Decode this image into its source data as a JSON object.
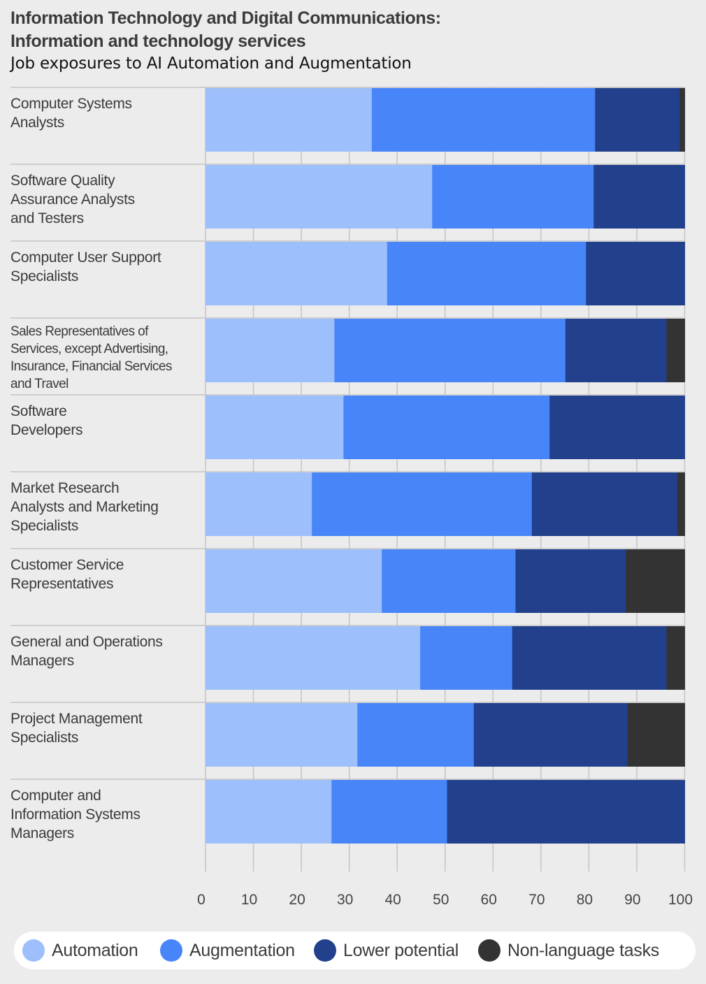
{
  "chart_data": {
    "type": "bar",
    "orientation": "horizontal",
    "stacked": true,
    "title": "Information Technology and Digital Communications:\nInformation and technology services",
    "title_lines": [
      "Information Technology and Digital Communications:",
      "Information and technology services"
    ],
    "subtitle": "Job exposures to AI Automation and Augmentation",
    "xlabel": "",
    "ylabel": "",
    "xlim": [
      0,
      100
    ],
    "xticks": [
      0,
      10,
      20,
      30,
      40,
      50,
      60,
      70,
      80,
      90,
      100
    ],
    "grid": true,
    "legend_position": "bottom",
    "categories": [
      "Computer Systems Analysts",
      "Software Quality Assurance Analysts and Testers",
      "Computer User Support Specialists",
      "Sales Representatives of Services, except Advertising, Insurance, Financial Services and Travel",
      "Software Developers",
      "Market Research Analysts and Marketing Specialists",
      "Customer Service Representatives",
      "General and Operations Managers",
      "Project Management Specialists",
      "Computer and Information Systems Managers"
    ],
    "category_lines": [
      [
        "Computer Systems",
        "Analysts"
      ],
      [
        "Software Quality",
        "Assurance Analysts",
        "and Testers"
      ],
      [
        "Computer User Support",
        "Specialists"
      ],
      [
        "Sales Representatives of",
        "Services, except Advertising,",
        "Insurance, Financial Services",
        "and Travel"
      ],
      [
        "Software",
        "Developers"
      ],
      [
        "Market Research",
        "Analysts and Marketing",
        "Specialists"
      ],
      [
        "Customer Service",
        "Representatives"
      ],
      [
        "General and Operations",
        "Managers"
      ],
      [
        "Project Management",
        "Specialists"
      ],
      [
        "Computer and",
        "Information Systems",
        "Managers"
      ]
    ],
    "series": [
      {
        "name": "Automation",
        "color": "#9dbffc",
        "values": [
          34.7,
          47.3,
          37.9,
          26.9,
          28.8,
          22.2,
          36.8,
          44.8,
          31.7,
          26.3
        ]
      },
      {
        "name": "Augmentation",
        "color": "#4885f9",
        "values": [
          46.6,
          33.7,
          41.5,
          48.2,
          43.0,
          45.9,
          27.9,
          19.2,
          24.3,
          24.1
        ]
      },
      {
        "name": "Lower potential",
        "color": "#22408c",
        "values": [
          17.7,
          19.0,
          20.6,
          21.1,
          28.2,
          30.4,
          23.0,
          32.2,
          32.1,
          49.6
        ]
      },
      {
        "name": "Non-language tasks",
        "color": "#333333",
        "values": [
          1.0,
          0,
          0,
          3.8,
          0,
          1.5,
          12.3,
          3.8,
          11.9,
          0
        ]
      }
    ]
  }
}
